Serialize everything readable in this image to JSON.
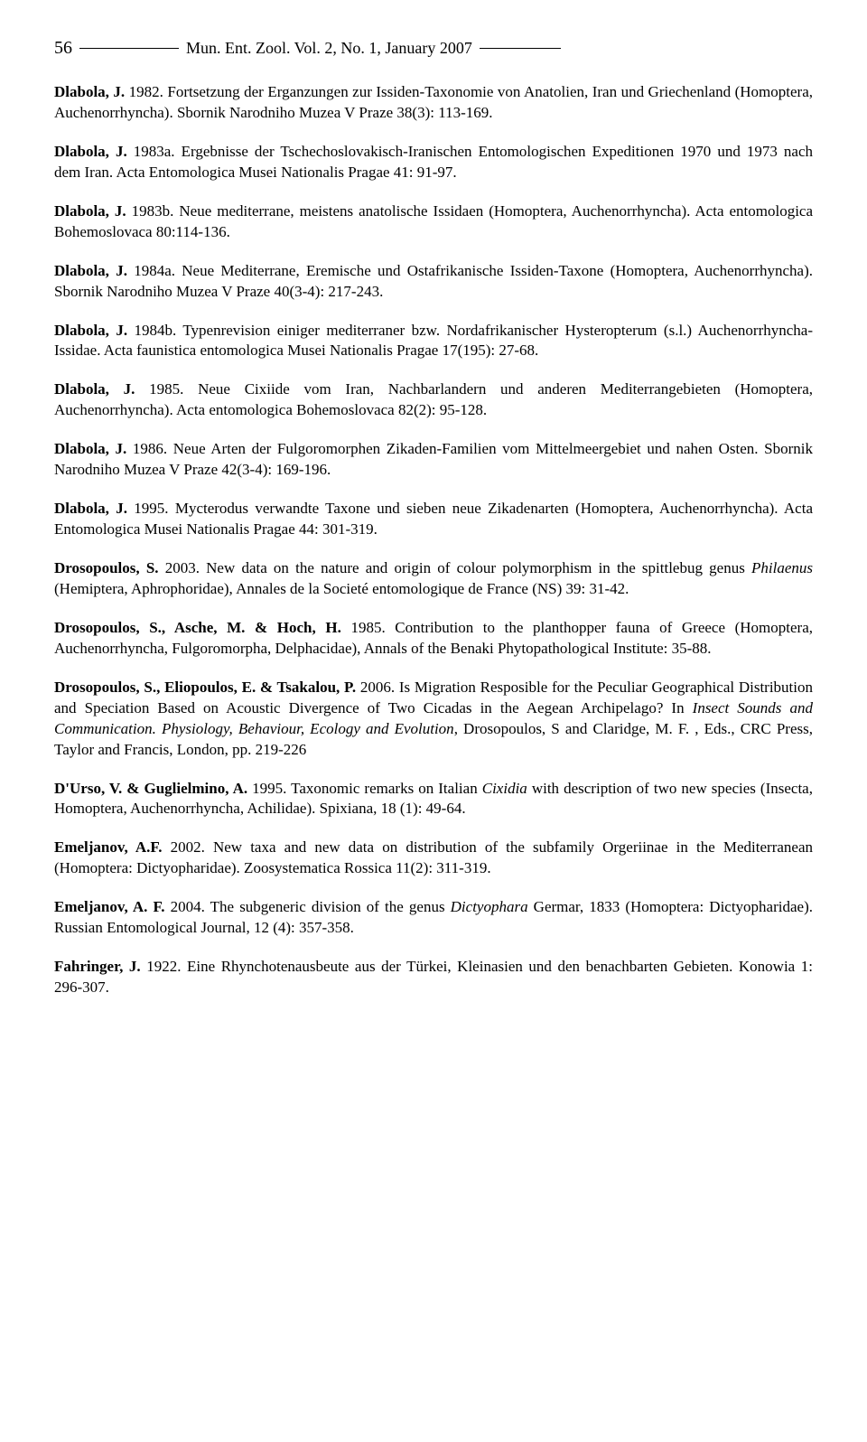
{
  "header": {
    "page_number": "56",
    "journal_title": "Mun. Ent. Zool. Vol. 2, No. 1, January 2007"
  },
  "references": [
    {
      "author": "Dlabola, J.",
      "year": "1982.",
      "text": "Fortsetzung der Erganzungen zur Issiden-Taxonomie von Anatolien, Iran und Griechenland (Homoptera, Auchenorrhyncha). Sbornik Narodniho Muzea V Praze 38(3): 113-169."
    },
    {
      "author": "Dlabola, J.",
      "year": "1983a.",
      "text": "Ergebnisse der Tschechoslovakisch-Iranischen Entomologischen Expeditionen 1970 und 1973 nach dem Iran. Acta Entomologica Musei Nationalis Pragae 41: 91-97."
    },
    {
      "author": "Dlabola, J.",
      "year": "1983b.",
      "text": "Neue mediterrane, meistens anatolische Issidaen (Homoptera, Auchenorrhyncha). Acta entomologica Bohemoslovaca 80:114-136."
    },
    {
      "author": "Dlabola, J.",
      "year": "1984a.",
      "text": "Neue Mediterrane, Eremische und Ostafrikanische Issiden-Taxone (Homoptera, Auchenorrhyncha). Sbornik Narodniho Muzea V Praze 40(3-4): 217-243."
    },
    {
      "author": "Dlabola, J.",
      "year": "1984b.",
      "text": "Typenrevision einiger mediterraner bzw. Nordafrikanischer Hysteropterum (s.l.) Auchenorrhyncha-Issidae. Acta faunistica entomologica Musei Nationalis Pragae 17(195): 27-68."
    },
    {
      "author": "Dlabola, J.",
      "year": "1985.",
      "text": "Neue Cixiide vom Iran, Nachbarlandern und anderen Mediterrangebieten (Homoptera, Auchenorrhyncha). Acta entomologica Bohemoslovaca 82(2): 95-128."
    },
    {
      "author": "Dlabola, J.",
      "year": "1986.",
      "text": "Neue Arten der Fulgoromorphen Zikaden-Familien vom Mittelmeergebiet und nahen Osten. Sbornik Narodniho Muzea V Praze 42(3-4): 169-196."
    },
    {
      "author": "Dlabola, J.",
      "year": "1995.",
      "text": "Mycterodus verwandte Taxone und sieben neue Zikadenarten (Homoptera, Auchenorrhyncha). Acta Entomologica Musei Nationalis Pragae 44: 301-319."
    },
    {
      "author": "Drosopoulos, S.",
      "year": "2003.",
      "text_before": "New data on the nature and origin of colour polymorphism in the spittlebug genus ",
      "italic1": "Philaenus",
      "text_after": " (Hemiptera, Aphrophoridae), Annales de la Societé entomologique de France (NS) 39: 31-42."
    },
    {
      "author": "Drosopoulos, S., Asche, M. & Hoch, H.",
      "year": "1985.",
      "text": "Contribution to the planthopper fauna of Greece (Homoptera, Auchenorrhyncha, Fulgoromorpha, Delphacidae), Annals of the Benaki Phytopathological Institute: 35-88."
    },
    {
      "author": "Drosopoulos, S., Eliopoulos, E. & Tsakalou, P.",
      "year": "2006.",
      "text_before": "Is Migration Resposible for the Peculiar Geographical Distribution and Speciation Based on Acoustic Divergence of Two Cicadas in the Aegean Archipelago? In ",
      "italic1": "Insect Sounds and Communication. Physiology, Behaviour, Ecology and Evolution",
      "text_after": ", Drosopoulos, S and Claridge, M. F. , Eds., CRC Press, Taylor and Francis, London, pp. 219-226"
    },
    {
      "author": "D'Urso, V. & Guglielmino, A.",
      "year": "1995.",
      "text_before": "Taxonomic remarks on Italian ",
      "italic1": "Cixidia",
      "text_after": " with description of two new species (Insecta, Homoptera, Auchenorrhyncha, Achilidae). Spixiana, 18 (1): 49-64."
    },
    {
      "author": "Emeljanov, A.F.",
      "year": "2002.",
      "text": "New taxa and new data on distribution of the subfamily Orgeriinae in the Mediterranean (Homoptera: Dictyopharidae). Zoosystematica Rossica 11(2): 311-319."
    },
    {
      "author": "Emeljanov, A. F.",
      "year": "2004.",
      "text_before": "The subgeneric division of the genus ",
      "italic1": "Dictyophara",
      "text_after": " Germar, 1833 (Homoptera: Dictyopharidae). Russian Entomological Journal, 12 (4): 357-358."
    },
    {
      "author": "Fahringer, J.",
      "year": "1922.",
      "text": "Eine Rhynchotenausbeute aus der Türkei, Kleinasien und den benachbarten Gebieten. Konowia 1: 296-307."
    }
  ]
}
